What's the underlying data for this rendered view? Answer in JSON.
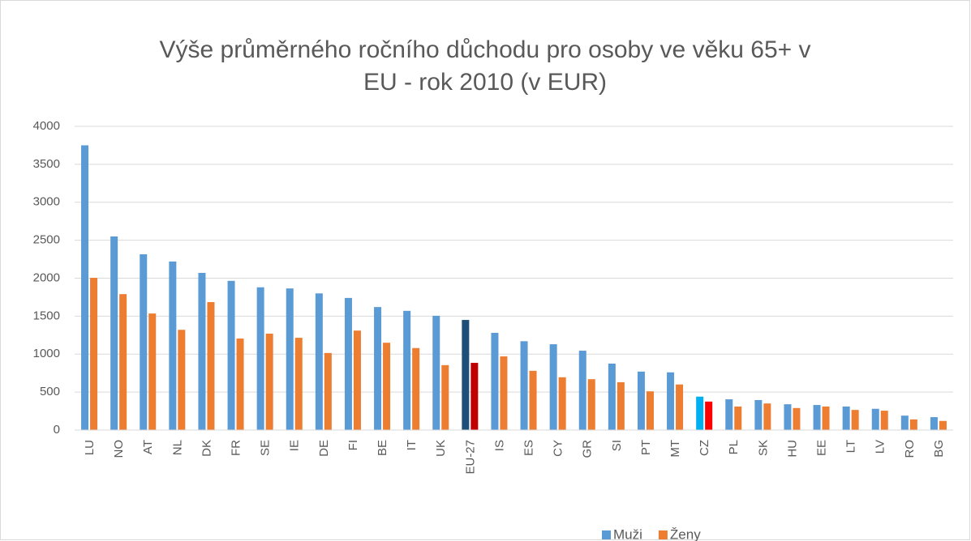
{
  "chart_data": {
    "type": "bar",
    "title": [
      "Výše průměrného ročního důchodu pro osoby ve věku 65+ v",
      "EU - rok 2010 (v EUR)"
    ],
    "categories": [
      "LU",
      "NO",
      "AT",
      "NL",
      "DK",
      "FR",
      "SE",
      "IE",
      "DE",
      "FI",
      "BE",
      "IT",
      "UK",
      "EU-27",
      "IS",
      "ES",
      "CY",
      "GR",
      "SI",
      "PT",
      "MT",
      "CZ",
      "PL",
      "SK",
      "HU",
      "EE",
      "LT",
      "LV",
      "RO",
      "BG"
    ],
    "series": [
      {
        "name": "Muži",
        "color": "#5b9bd5",
        "point_colors": [
          "#5b9bd5",
          "#5b9bd5",
          "#5b9bd5",
          "#5b9bd5",
          "#5b9bd5",
          "#5b9bd5",
          "#5b9bd5",
          "#5b9bd5",
          "#5b9bd5",
          "#5b9bd5",
          "#5b9bd5",
          "#5b9bd5",
          "#5b9bd5",
          "#1f4e79",
          "#5b9bd5",
          "#5b9bd5",
          "#5b9bd5",
          "#5b9bd5",
          "#5b9bd5",
          "#5b9bd5",
          "#5b9bd5",
          "#00b0f0",
          "#5b9bd5",
          "#5b9bd5",
          "#5b9bd5",
          "#5b9bd5",
          "#5b9bd5",
          "#5b9bd5",
          "#5b9bd5",
          "#5b9bd5"
        ],
        "values": [
          3750,
          2550,
          2315,
          2220,
          2070,
          1965,
          1880,
          1865,
          1800,
          1740,
          1620,
          1570,
          1505,
          1450,
          1280,
          1170,
          1130,
          1045,
          875,
          770,
          760,
          440,
          405,
          395,
          340,
          330,
          310,
          280,
          190,
          170
        ]
      },
      {
        "name": "Ženy",
        "color": "#ed7d31",
        "point_colors": [
          "#ed7d31",
          "#ed7d31",
          "#ed7d31",
          "#ed7d31",
          "#ed7d31",
          "#ed7d31",
          "#ed7d31",
          "#ed7d31",
          "#ed7d31",
          "#ed7d31",
          "#ed7d31",
          "#ed7d31",
          "#ed7d31",
          "#c00000",
          "#ed7d31",
          "#ed7d31",
          "#ed7d31",
          "#ed7d31",
          "#ed7d31",
          "#ed7d31",
          "#ed7d31",
          "#ff0000",
          "#ed7d31",
          "#ed7d31",
          "#ed7d31",
          "#ed7d31",
          "#ed7d31",
          "#ed7d31",
          "#ed7d31",
          "#ed7d31"
        ],
        "values": [
          2005,
          1790,
          1535,
          1320,
          1685,
          1205,
          1270,
          1215,
          1015,
          1310,
          1150,
          1080,
          855,
          885,
          970,
          780,
          695,
          670,
          630,
          510,
          600,
          375,
          310,
          350,
          290,
          310,
          265,
          255,
          140,
          120
        ]
      }
    ],
    "ylim": [
      0,
      4000
    ],
    "yticks": [
      0,
      500,
      1000,
      1500,
      2000,
      2500,
      3000,
      3500,
      4000
    ],
    "grid": true,
    "legend": "bottom"
  }
}
